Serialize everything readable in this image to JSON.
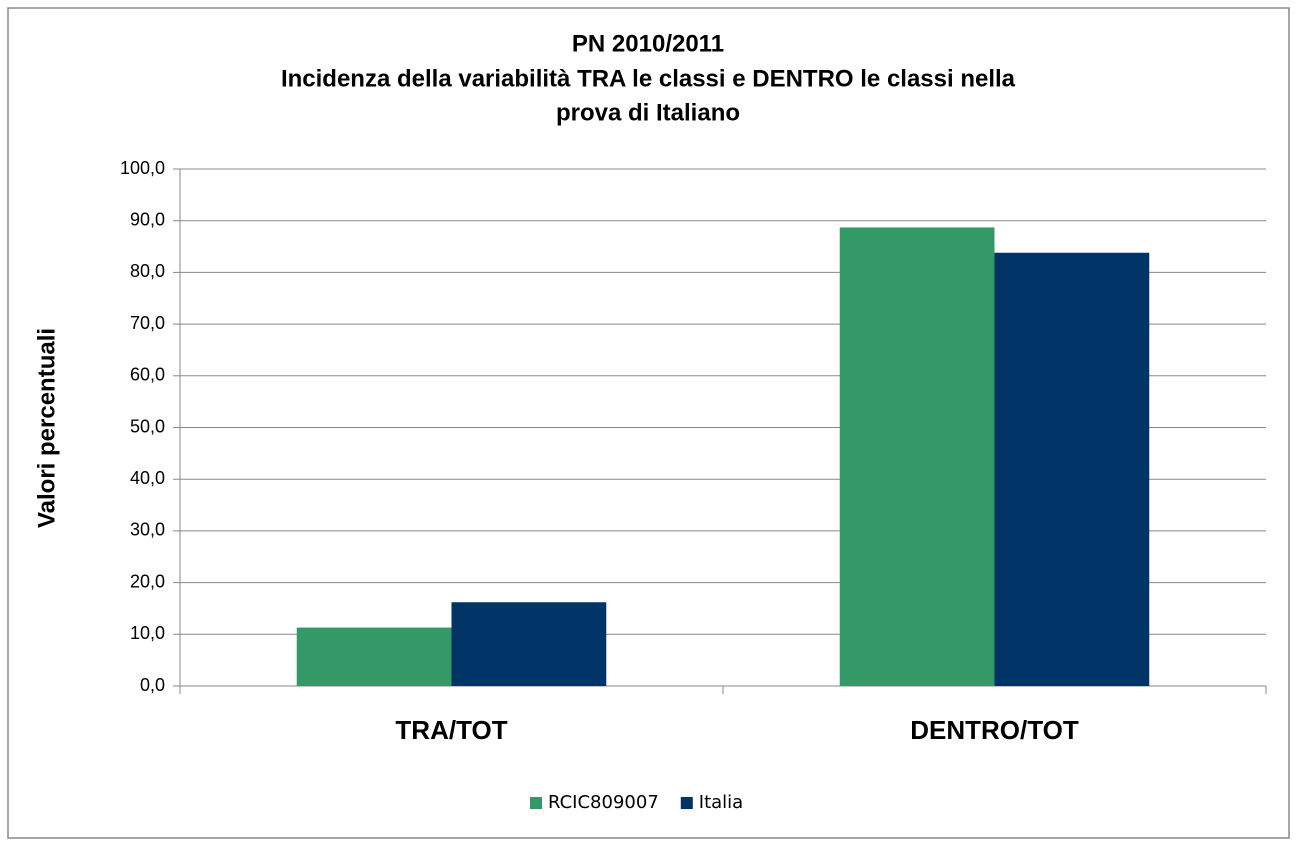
{
  "chart_data": {
    "type": "bar",
    "title": [
      "PN 2010/2011",
      "Incidenza della variabilità TRA le classi e DENTRO le classi nella",
      "prova di Italiano"
    ],
    "y_label": "Valori percentuali",
    "categories": [
      "TRA/TOT",
      "DENTRO/TOT"
    ],
    "series": [
      {
        "name": "RCIC809007",
        "color": "#339966",
        "values": [
          11.3,
          88.7
        ]
      },
      {
        "name": "Italia",
        "color": "#003366",
        "values": [
          16.2,
          83.8
        ]
      }
    ],
    "ylim": [
      0,
      100
    ],
    "yticks": [
      {
        "value": 0,
        "label": "0,0"
      },
      {
        "value": 10,
        "label": "10,0"
      },
      {
        "value": 20,
        "label": "20,0"
      },
      {
        "value": 30,
        "label": "30,0"
      },
      {
        "value": 40,
        "label": "40,0"
      },
      {
        "value": 50,
        "label": "50,0"
      },
      {
        "value": 60,
        "label": "60,0"
      },
      {
        "value": 70,
        "label": "70,0"
      },
      {
        "value": 80,
        "label": "80,0"
      },
      {
        "value": 90,
        "label": "90,0"
      },
      {
        "value": 100,
        "label": "100,0"
      }
    ],
    "grid": true,
    "legend": "bottom"
  }
}
